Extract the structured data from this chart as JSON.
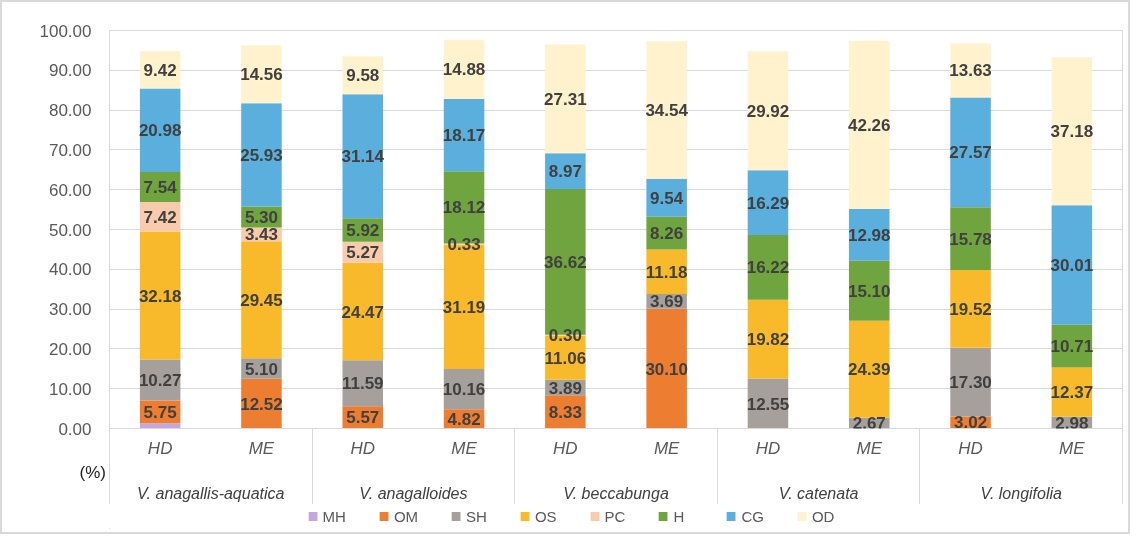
{
  "chart_data": {
    "type": "bar",
    "stacked": true,
    "ylabel": "(%)",
    "categories": [
      "HD",
      "ME",
      "HD",
      "ME",
      "HD",
      "ME",
      "HD",
      "ME",
      "HD",
      "ME"
    ],
    "annotations": [
      "V. anagallis-aquatica",
      "V. anagalloides",
      "V. beccabunga",
      "V. catenata",
      "V. longifolia"
    ],
    "ylim": [
      0,
      100
    ],
    "yticks": [
      {
        "value": 0,
        "label": "0.00"
      },
      {
        "value": 10,
        "label": "10.00"
      },
      {
        "value": 20,
        "label": "20.00"
      },
      {
        "value": 30,
        "label": "30.00"
      },
      {
        "value": 40,
        "label": "40.00"
      },
      {
        "value": 50,
        "label": "50.00"
      },
      {
        "value": 60,
        "label": "60.00"
      },
      {
        "value": 70,
        "label": "70.00"
      },
      {
        "value": 80,
        "label": "80.00"
      },
      {
        "value": 90,
        "label": "90.00"
      },
      {
        "value": 100,
        "label": "100.00"
      }
    ],
    "grid": "y",
    "legend": "bottom",
    "series": [
      {
        "name": "MH",
        "color": "#c6a7db",
        "values": [
          1.3,
          null,
          null,
          null,
          null,
          null,
          null,
          null,
          null,
          null
        ],
        "value_labels": [
          null,
          null,
          null,
          null,
          null,
          null,
          null,
          null,
          null,
          null
        ]
      },
      {
        "name": "OM",
        "color": "#ed7d31",
        "values": [
          5.75,
          12.52,
          5.57,
          4.82,
          8.33,
          30.1,
          null,
          null,
          3.02,
          null
        ],
        "value_labels": [
          "5.75",
          "12.52",
          "5.57",
          "4.82",
          "8.33",
          "30.10",
          null,
          null,
          "3.02",
          null
        ]
      },
      {
        "name": "SH",
        "color": "#a5a09b",
        "values": [
          10.27,
          5.1,
          11.59,
          10.16,
          3.89,
          3.69,
          12.55,
          2.67,
          17.3,
          2.98
        ],
        "value_labels": [
          "10.27",
          "5.10",
          "11.59",
          "10.16",
          "3.89",
          "3.69",
          "12.55",
          "2.67",
          "17.30",
          "2.98"
        ]
      },
      {
        "name": "OS",
        "color": "#f8ba2b",
        "values": [
          32.18,
          29.45,
          24.47,
          31.19,
          11.06,
          11.18,
          19.82,
          24.39,
          19.52,
          12.37
        ],
        "value_labels": [
          "32.18",
          "29.45",
          "24.47",
          "31.19",
          "11.06",
          "11.18",
          "19.82",
          "24.39",
          "19.52",
          "12.37"
        ]
      },
      {
        "name": "PC",
        "color": "#f8cbad",
        "values": [
          7.42,
          3.43,
          5.27,
          0.33,
          0.3,
          null,
          null,
          null,
          null,
          null
        ],
        "value_labels": [
          "7.42",
          "3.43",
          "5.27",
          "0.33",
          "0.30",
          null,
          null,
          null,
          null,
          null
        ]
      },
      {
        "name": "H",
        "color": "#70a43f",
        "values": [
          7.54,
          5.3,
          5.92,
          18.12,
          36.62,
          8.26,
          16.22,
          15.1,
          15.78,
          10.71
        ],
        "value_labels": [
          "7.54",
          "5.30",
          "5.92",
          "18.12",
          "36.62",
          "8.26",
          "16.22",
          "15.10",
          "15.78",
          "10.71"
        ]
      },
      {
        "name": "CG",
        "color": "#5aafdd",
        "values": [
          20.98,
          25.93,
          31.14,
          18.17,
          8.97,
          9.54,
          16.29,
          12.98,
          27.57,
          30.01
        ],
        "value_labels": [
          "20.98",
          "25.93",
          "31.14",
          "18.17",
          "8.97",
          "9.54",
          "16.29",
          "12.98",
          "27.57",
          "30.01"
        ]
      },
      {
        "name": "OD",
        "color": "#fff2cc",
        "values": [
          9.42,
          14.56,
          9.58,
          14.88,
          27.31,
          34.54,
          29.92,
          42.26,
          13.63,
          37.18
        ],
        "value_labels": [
          "9.42",
          "14.56",
          "9.58",
          "14.88",
          "27.31",
          "34.54",
          "29.92",
          "42.26",
          "13.63",
          "37.18"
        ]
      }
    ]
  }
}
